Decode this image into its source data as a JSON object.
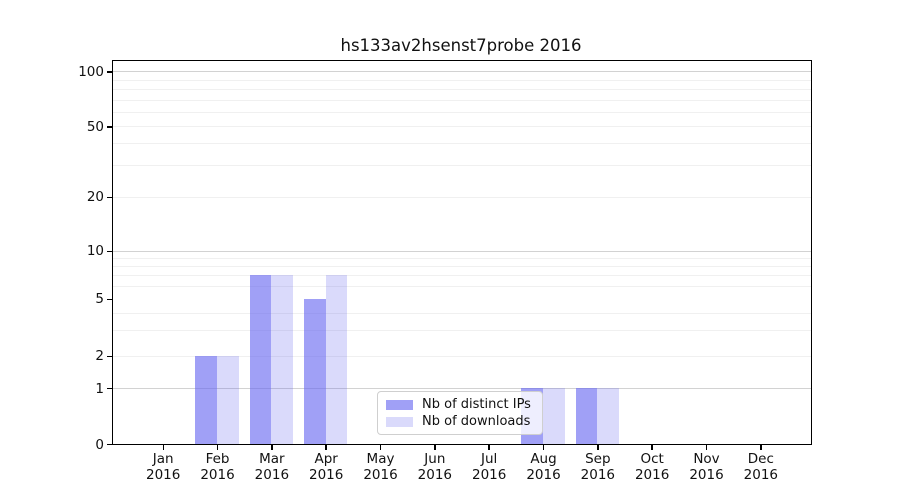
{
  "chart_data": {
    "type": "bar",
    "title": "hs133av2hsenst7probe 2016",
    "categories": [
      "Jan",
      "Feb",
      "Mar",
      "Apr",
      "May",
      "Jun",
      "Jul",
      "Aug",
      "Sep",
      "Oct",
      "Nov",
      "Dec"
    ],
    "category_year_label": "2016",
    "series": [
      {
        "name": "Nb of distinct IPs",
        "color": "rgba(102,102,240,0.62)",
        "values": [
          0,
          2,
          7,
          5,
          0,
          0,
          0,
          1,
          1,
          0,
          0,
          0
        ]
      },
      {
        "name": "Nb of downloads",
        "color": "rgba(102,102,240,0.24)",
        "values": [
          0,
          2,
          7,
          7,
          0,
          0,
          0,
          1,
          1,
          0,
          0,
          0
        ]
      }
    ],
    "yaxis": {
      "scale": "symlog",
      "ticks": [
        0,
        1,
        2,
        5,
        10,
        20,
        50,
        100
      ],
      "major_gridlines": [
        1,
        10,
        100
      ],
      "minor_gridlines": [
        2,
        3,
        4,
        6,
        7,
        8,
        9,
        20,
        30,
        40,
        50,
        60,
        70,
        80,
        90
      ],
      "major_grid_color": "#d2d2d2",
      "minor_grid_color": "#f0f0f0",
      "ylim": [
        0,
        110
      ]
    },
    "xaxis": {
      "tick_years": [
        "2016",
        "2016",
        "2016",
        "2016",
        "2016",
        "2016",
        "2016",
        "2016",
        "2016",
        "2016",
        "2016",
        "2016"
      ]
    },
    "legend": {
      "position": "lower-center",
      "entries": [
        "Nb of distinct IPs",
        "Nb of downloads"
      ]
    },
    "grid": true,
    "background": "#ffffff"
  }
}
